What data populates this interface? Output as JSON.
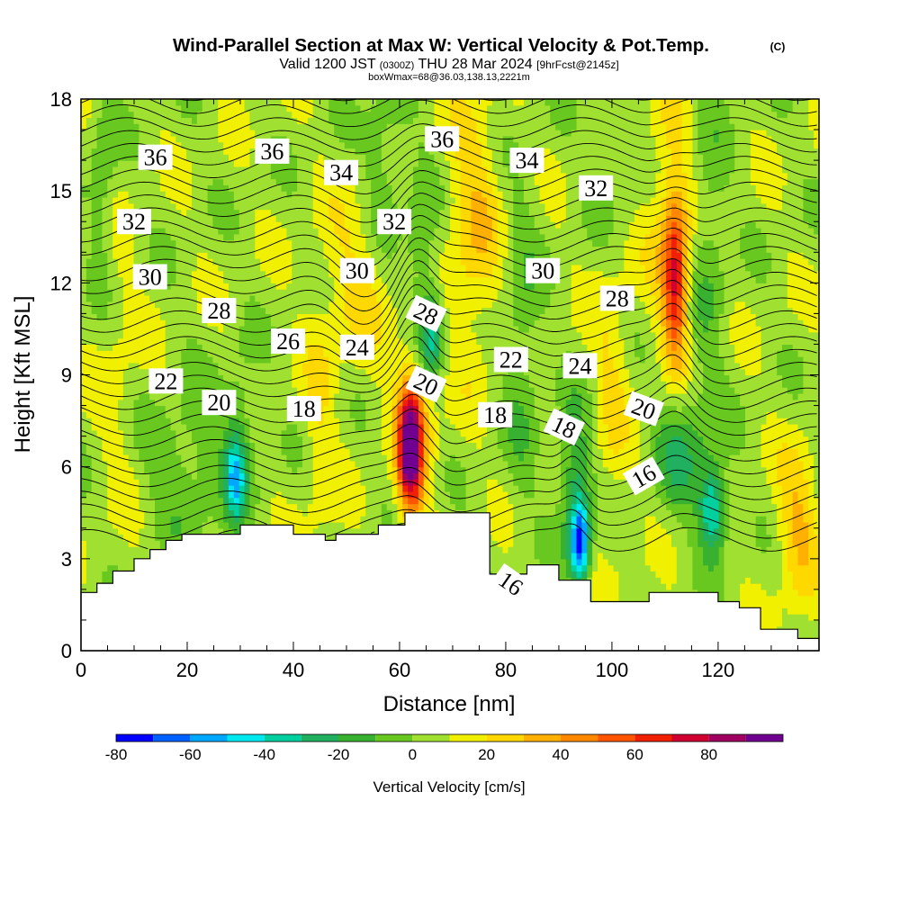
{
  "chart_data": {
    "type": "heatmap",
    "title": "Wind-Parallel Section at Max W: Vertical Velocity & Pot.Temp.",
    "title_mark": "(C)",
    "subtitle": {
      "valid": "Valid 1200 JST",
      "utc": "(0300Z)",
      "date": "THU 28 Mar 2024",
      "fcst": "[9hrFcst@2145z]"
    },
    "subtitle2": "boxWmax=68@36.03,138.13,2221m",
    "xlabel": "Distance [nm]",
    "ylabel": "Height [Kft MSL]",
    "xlim": [
      0,
      139
    ],
    "ylim": [
      0,
      18
    ],
    "xticks": [
      0,
      20,
      40,
      60,
      80,
      100,
      120
    ],
    "yticks": [
      0,
      3,
      6,
      9,
      12,
      15,
      18
    ],
    "colorbar": {
      "label": "Vertical Velocity [cm/s]",
      "ticks": [
        -80,
        -60,
        -40,
        -20,
        0,
        20,
        40,
        60,
        80
      ],
      "levels": [
        -80,
        -70,
        -60,
        -50,
        -40,
        -30,
        -20,
        -10,
        0,
        10,
        20,
        30,
        40,
        50,
        60,
        70,
        80,
        90
      ],
      "colors": [
        "#0000ff",
        "#0060ff",
        "#00a8ff",
        "#00e8f0",
        "#00d0a0",
        "#20b060",
        "#38b030",
        "#68c820",
        "#a0e030",
        "#f0f000",
        "#ffd800",
        "#ffb000",
        "#ff8800",
        "#ff5500",
        "#f02000",
        "#d00030",
        "#a00060",
        "#700090"
      ]
    },
    "terrain": [
      [
        0,
        1.9
      ],
      [
        3,
        1.9
      ],
      [
        3,
        2.2
      ],
      [
        6,
        2.2
      ],
      [
        6,
        2.6
      ],
      [
        10,
        2.6
      ],
      [
        10,
        3.0
      ],
      [
        13,
        3.0
      ],
      [
        13,
        3.3
      ],
      [
        16,
        3.3
      ],
      [
        16,
        3.6
      ],
      [
        19,
        3.6
      ],
      [
        19,
        3.8
      ],
      [
        30,
        3.8
      ],
      [
        30,
        4.1
      ],
      [
        40,
        4.1
      ],
      [
        40,
        3.8
      ],
      [
        46,
        3.8
      ],
      [
        46,
        3.6
      ],
      [
        48,
        3.6
      ],
      [
        48,
        3.8
      ],
      [
        56,
        3.8
      ],
      [
        56,
        4.1
      ],
      [
        61,
        4.1
      ],
      [
        61,
        4.5
      ],
      [
        68,
        4.5
      ],
      [
        68,
        4.5
      ],
      [
        77,
        4.5
      ],
      [
        77,
        2.5
      ],
      [
        84,
        2.5
      ],
      [
        84,
        2.8
      ],
      [
        90,
        2.8
      ],
      [
        90,
        2.3
      ],
      [
        96,
        2.3
      ],
      [
        96,
        1.6
      ],
      [
        107,
        1.6
      ],
      [
        107,
        1.9
      ],
      [
        120,
        1.9
      ],
      [
        120,
        1.6
      ],
      [
        124,
        1.6
      ],
      [
        124,
        1.4
      ],
      [
        128,
        1.4
      ],
      [
        128,
        0.7
      ],
      [
        135,
        0.7
      ],
      [
        135,
        0.4
      ],
      [
        139,
        0.4
      ]
    ],
    "w_blobs": [
      {
        "x": 62,
        "y": 6.5,
        "sx": 2.2,
        "sy": 2.0,
        "w": 85
      },
      {
        "x": 63,
        "y": 7.5,
        "sx": 4.0,
        "sy": 2.6,
        "w": 25
      },
      {
        "x": 112,
        "y": 12,
        "sx": 2.2,
        "sy": 2.5,
        "w": 55
      },
      {
        "x": 111,
        "y": 14,
        "sx": 4.5,
        "sy": 4.0,
        "w": 20
      },
      {
        "x": 74,
        "y": 14,
        "sx": 5.0,
        "sy": 4.5,
        "w": 22
      },
      {
        "x": 52,
        "y": 12,
        "sx": 7.0,
        "sy": 3.0,
        "w": 15
      },
      {
        "x": 94,
        "y": 3.5,
        "sx": 1.7,
        "sy": 1.3,
        "w": -70
      },
      {
        "x": 93,
        "y": 5.5,
        "sx": 3.0,
        "sy": 2.5,
        "w": -30
      },
      {
        "x": 119,
        "y": 4.6,
        "sx": 2.5,
        "sy": 1.4,
        "w": -50
      },
      {
        "x": 113,
        "y": 6.5,
        "sx": 5.0,
        "sy": 2.0,
        "w": -25
      },
      {
        "x": 29,
        "y": 5.6,
        "sx": 1.8,
        "sy": 1.3,
        "w": -40
      },
      {
        "x": 30,
        "y": 7.0,
        "sx": 3.0,
        "sy": 2.5,
        "w": -18
      },
      {
        "x": 66,
        "y": 10.3,
        "sx": 2.2,
        "sy": 1.6,
        "w": -40
      },
      {
        "x": 64,
        "y": 13,
        "sx": 3.0,
        "sy": 3.0,
        "w": -15
      },
      {
        "x": 83,
        "y": 10,
        "sx": 3.5,
        "sy": 5.0,
        "w": -15
      },
      {
        "x": 118,
        "y": 13,
        "sx": 3.5,
        "sy": 5.0,
        "w": -15
      },
      {
        "x": 100,
        "y": 9,
        "sx": 3.5,
        "sy": 4.5,
        "w": 14
      },
      {
        "x": 135,
        "y": 4,
        "sx": 4.0,
        "sy": 2.5,
        "w": 25
      },
      {
        "x": 45,
        "y": 7,
        "sx": 3.0,
        "sy": 4.0,
        "w": 12
      },
      {
        "x": 7,
        "y": 9,
        "sx": 4.0,
        "sy": 5.0,
        "w": 8
      },
      {
        "x": 4,
        "y": 15,
        "sx": 2.5,
        "sy": 3.0,
        "w": -15
      },
      {
        "x": 57,
        "y": 16,
        "sx": 4.0,
        "sy": 3.0,
        "w": -15
      },
      {
        "x": 20,
        "y": 6,
        "sx": 8.0,
        "sy": 2.5,
        "w": -15
      },
      {
        "x": 100,
        "y": 16,
        "sx": 4.0,
        "sy": 3.0,
        "w": -8
      }
    ],
    "theta_labels": [
      {
        "x": 14,
        "y": 16.1,
        "text": "36",
        "rot": 0
      },
      {
        "x": 36,
        "y": 16.3,
        "text": "36",
        "rot": 0
      },
      {
        "x": 68,
        "y": 16.7,
        "text": "36",
        "rot": 0
      },
      {
        "x": 49,
        "y": 15.6,
        "text": "34",
        "rot": 0
      },
      {
        "x": 84,
        "y": 16.0,
        "text": "34",
        "rot": 0
      },
      {
        "x": 10,
        "y": 14.0,
        "text": "32",
        "rot": 0
      },
      {
        "x": 59,
        "y": 14.0,
        "text": "32",
        "rot": 0
      },
      {
        "x": 97,
        "y": 15.1,
        "text": "32",
        "rot": 0
      },
      {
        "x": 13,
        "y": 12.2,
        "text": "30",
        "rot": 0
      },
      {
        "x": 52,
        "y": 12.4,
        "text": "30",
        "rot": 0
      },
      {
        "x": 87,
        "y": 12.4,
        "text": "30",
        "rot": 0
      },
      {
        "x": 26,
        "y": 11.1,
        "text": "28",
        "rot": 0
      },
      {
        "x": 65,
        "y": 11.0,
        "text": "28",
        "rot": 25
      },
      {
        "x": 101,
        "y": 11.5,
        "text": "28",
        "rot": 0
      },
      {
        "x": 39,
        "y": 10.1,
        "text": "26",
        "rot": 0
      },
      {
        "x": 52,
        "y": 9.9,
        "text": "24",
        "rot": 0
      },
      {
        "x": 94,
        "y": 9.3,
        "text": "24",
        "rot": 0
      },
      {
        "x": 81,
        "y": 9.5,
        "text": "22",
        "rot": 0
      },
      {
        "x": 16,
        "y": 8.8,
        "text": "22",
        "rot": 0
      },
      {
        "x": 26,
        "y": 8.1,
        "text": "20",
        "rot": 0
      },
      {
        "x": 65,
        "y": 8.7,
        "text": "20",
        "rot": 25
      },
      {
        "x": 106,
        "y": 7.9,
        "text": "20",
        "rot": 20
      },
      {
        "x": 42,
        "y": 7.9,
        "text": "18",
        "rot": 0
      },
      {
        "x": 78,
        "y": 7.7,
        "text": "18",
        "rot": 0
      },
      {
        "x": 91,
        "y": 7.3,
        "text": "18",
        "rot": 25
      },
      {
        "x": 106,
        "y": 5.7,
        "text": "16",
        "rot": -30
      },
      {
        "x": 81,
        "y": 2.2,
        "text": "16",
        "rot": 35
      }
    ]
  }
}
